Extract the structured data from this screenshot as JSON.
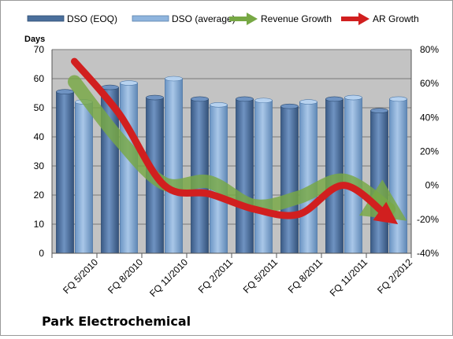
{
  "chart_data": {
    "type": "bar",
    "categories": [
      "FQ 5/2010",
      "FQ 8/2010",
      "FQ 11/2010",
      "FQ 2/2011",
      "FQ 5/2011",
      "FQ 8/2011",
      "FQ 11/2011",
      "FQ 2/2012"
    ],
    "series": [
      {
        "name": "DSO (EOQ)",
        "type": "bar",
        "axis": "left",
        "values": [
          55.5,
          57,
          53.5,
          53,
          53,
          50.5,
          53,
          49
        ]
      },
      {
        "name": "DSO (average)",
        "type": "bar",
        "axis": "left",
        "values": [
          52,
          58.5,
          60,
          51,
          52.5,
          52,
          53.5,
          53
        ]
      },
      {
        "name": "Revenue Growth",
        "type": "line",
        "axis": "right",
        "values": [
          0.61,
          0.27,
          0.01,
          0.02,
          -0.12,
          -0.07,
          0.03,
          -0.14
        ]
      },
      {
        "name": "AR Growth",
        "type": "line",
        "axis": "right",
        "values": [
          0.73,
          0.42,
          0.0,
          -0.05,
          -0.14,
          -0.17,
          0.0,
          -0.19
        ]
      }
    ],
    "y_label": "Days",
    "y_ticks": [
      "0",
      "10",
      "20",
      "30",
      "40",
      "50",
      "60",
      "70"
    ],
    "ylim": [
      0,
      70
    ],
    "y2_ticks": [
      "-40%",
      "-20%",
      "0%",
      "20%",
      "40%",
      "60%",
      "80%"
    ],
    "y2lim": [
      -0.4,
      0.8
    ],
    "colors": {
      "dso_eoq": "#4a6f9c",
      "dso_average": "#7fa8d4",
      "revenue_growth": "#77a844",
      "ar_growth": "#d11f1f",
      "plot_background": "#c3c3c3"
    },
    "grid": true,
    "legend_position": "top"
  },
  "company": "Park Electrochemical"
}
